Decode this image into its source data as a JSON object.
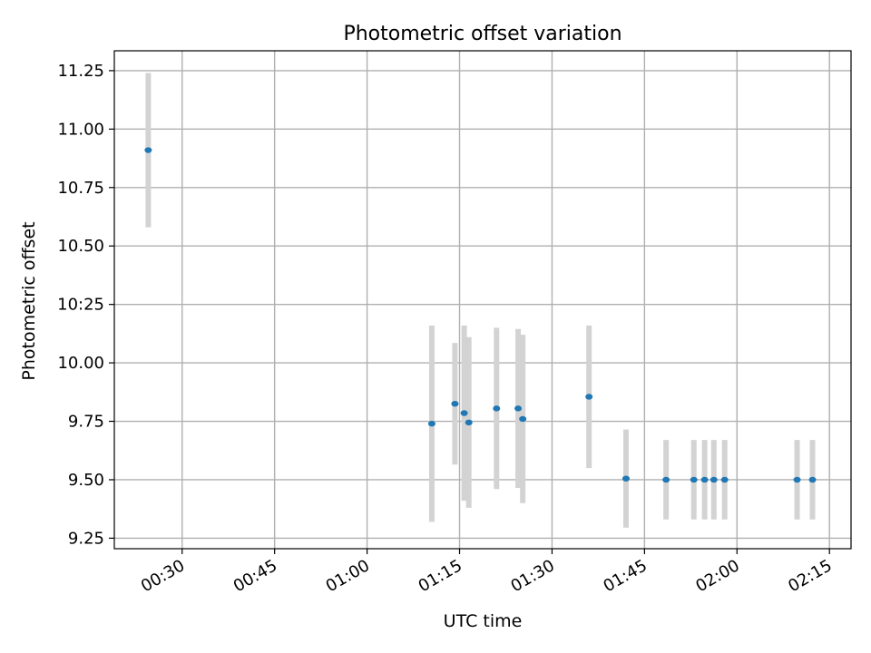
{
  "chart_data": {
    "type": "scatter",
    "title": "Photometric offset variation",
    "xlabel": "UTC time",
    "ylabel": "Photometric offset",
    "xlim": [
      "00:19:00",
      "02:18:30"
    ],
    "ylim": [
      9.205,
      11.335
    ],
    "x_ticks": [
      "00:30",
      "00:45",
      "01:00",
      "01:15",
      "01:30",
      "01:45",
      "02:00",
      "02:15"
    ],
    "y_ticks": [
      "9.25",
      "9.50",
      "9.75",
      "10.00",
      "10:25",
      "10.50",
      "10.75",
      "11.00",
      "11.25"
    ],
    "grid": true,
    "marker_color": "#1f77b4",
    "errorbar_color": "#d3d3d3",
    "points": [
      {
        "time": "00:24:30",
        "y": 10.91,
        "err": 0.33
      },
      {
        "time": "01:10:30",
        "y": 9.74,
        "err": 0.42
      },
      {
        "time": "01:14:15",
        "y": 9.825,
        "err": 0.26
      },
      {
        "time": "01:15:45",
        "y": 9.785,
        "err": 0.375
      },
      {
        "time": "01:16:30",
        "y": 9.745,
        "err": 0.365
      },
      {
        "time": "01:21:00",
        "y": 9.805,
        "err": 0.345
      },
      {
        "time": "01:24:30",
        "y": 9.805,
        "err": 0.34
      },
      {
        "time": "01:25:15",
        "y": 9.76,
        "err": 0.36
      },
      {
        "time": "01:36:00",
        "y": 9.855,
        "err": 0.305
      },
      {
        "time": "01:42:00",
        "y": 9.505,
        "err": 0.21
      },
      {
        "time": "01:48:30",
        "y": 9.5,
        "err": 0.17
      },
      {
        "time": "01:53:00",
        "y": 9.5,
        "err": 0.17
      },
      {
        "time": "01:54:45",
        "y": 9.5,
        "err": 0.17
      },
      {
        "time": "01:56:15",
        "y": 9.5,
        "err": 0.17
      },
      {
        "time": "01:58:00",
        "y": 9.5,
        "err": 0.17
      },
      {
        "time": "02:09:45",
        "y": 9.5,
        "err": 0.17
      },
      {
        "time": "02:12:15",
        "y": 9.5,
        "err": 0.17
      }
    ]
  }
}
